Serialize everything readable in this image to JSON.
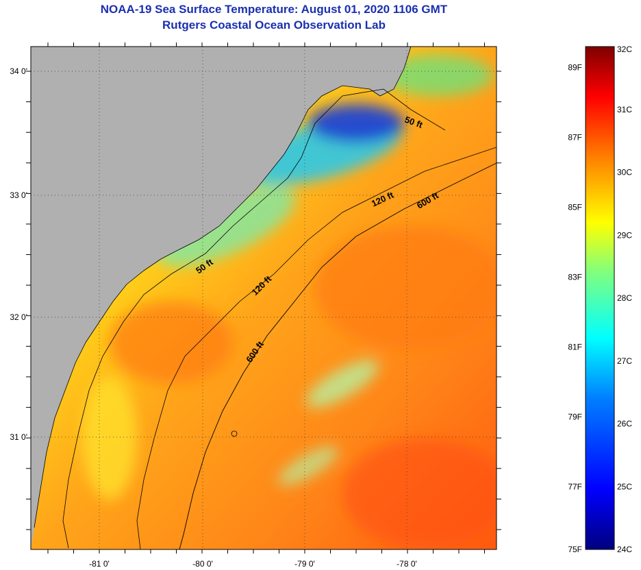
{
  "title": "NOAA-19 Sea Surface Temperature:  August 01, 2020 1106 GMT",
  "subtitle": "Rutgers Coastal Ocean Observation Lab",
  "lat_labels": [
    "34 0'",
    "33 0'",
    "32 0'",
    "31 0'"
  ],
  "lon_labels": [
    "-81 0'",
    "-80 0'",
    "-79 0'",
    "-78 0'"
  ],
  "contours": [
    {
      "label": "50 ft"
    },
    {
      "label": "50 ft"
    },
    {
      "label": "120 ft"
    },
    {
      "label": "120 ft"
    },
    {
      "label": "600 ft"
    },
    {
      "label": "600 ft"
    }
  ],
  "colorbar": {
    "fahrenheit_labels": [
      "89F",
      "87F",
      "85F",
      "83F",
      "81F",
      "79F",
      "77F",
      "75F"
    ],
    "celsius_labels": [
      "32C",
      "31C",
      "30C",
      "29C",
      "28C",
      "27C",
      "26C",
      "25C",
      "24C"
    ],
    "range_c": [
      24,
      32
    ],
    "colors": [
      "#00007f",
      "#0000ff",
      "#007fff",
      "#00ffff",
      "#7fff7f",
      "#ffff00",
      "#ff7f00",
      "#ff0000",
      "#7f0000"
    ]
  },
  "colors": {
    "land": "#b0b0b0",
    "title": "#1a2fb0",
    "warm_water": "#ff8a1a",
    "cool_water": "#3fdcc8"
  }
}
